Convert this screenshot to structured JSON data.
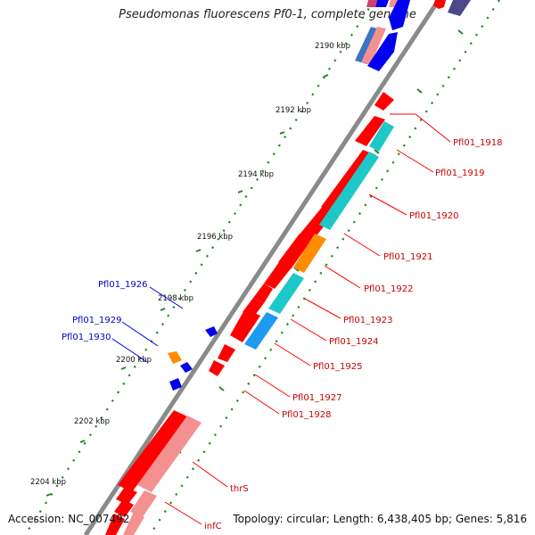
{
  "title": "Pseudomonas fluorescens Pf0-1, complete genome",
  "footer": {
    "accession": "Accession: NC_007492",
    "summary": "Topology: circular; Length: 6,438,405 bp; Genes: 5,816"
  },
  "colors": {
    "backbone": "#8a8a8a",
    "tick": "#1e8a1e",
    "forward_gene": "#ff0000",
    "forward_gene_light": "#f49090",
    "reverse_gene": "#0000ee",
    "cds_cyan": "#1ec8c8",
    "cds_orange": "#ff8c00",
    "cds_skyblue": "#1e9af0",
    "label_forward": "#cc0000",
    "label_reverse": "#0000cc",
    "leader_forward": "#ff0000",
    "leader_reverse": "#0000dd"
  },
  "scale": {
    "unit": "kbp",
    "ticks": [
      {
        "text": "2190 kbp"
      },
      {
        "text": "2192 kbp"
      },
      {
        "text": "2194 kbp"
      },
      {
        "text": "2196 kbp"
      },
      {
        "text": "2198 kbp"
      },
      {
        "text": "2200 kbp"
      },
      {
        "text": "2202 kbp"
      },
      {
        "text": "2204 kbp"
      }
    ]
  },
  "genes": {
    "forward": [
      {
        "label": "Pfl01_1918"
      },
      {
        "label": "Pfl01_1919"
      },
      {
        "label": "Pfl01_1920"
      },
      {
        "label": "Pfl01_1921"
      },
      {
        "label": "Pfl01_1922"
      },
      {
        "label": "Pfl01_1923"
      },
      {
        "label": "Pfl01_1924"
      },
      {
        "label": "Pfl01_1925"
      },
      {
        "label": "Pfl01_1927"
      },
      {
        "label": "Pfl01_1928"
      },
      {
        "label": "thrS"
      },
      {
        "label": "infC"
      }
    ],
    "reverse": [
      {
        "label": "Pfl01_1926"
      },
      {
        "label": "Pfl01_1929"
      },
      {
        "label": "Pfl01_1930"
      }
    ]
  }
}
